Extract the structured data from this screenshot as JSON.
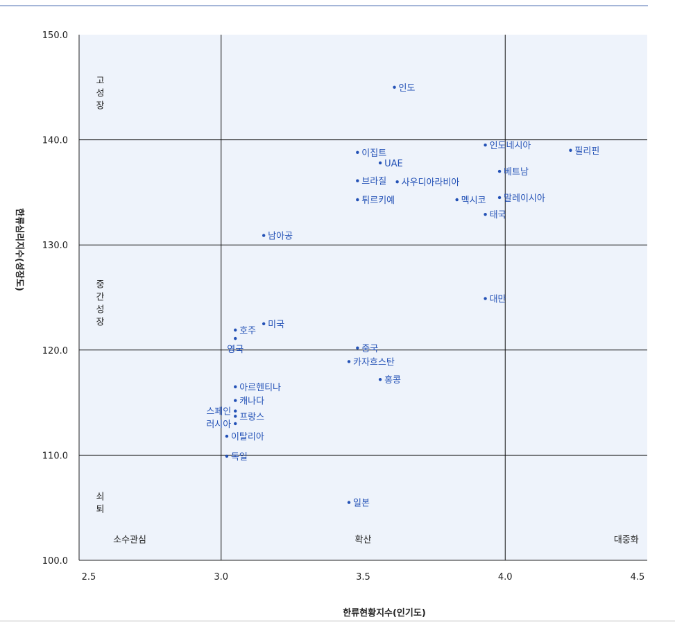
{
  "chart_data": {
    "type": "scatter",
    "xlabel": "한류현황지수(인기도)",
    "ylabel": "한류심리지수(성장도)",
    "xlim": [
      2.5,
      4.5
    ],
    "ylim": [
      100,
      150
    ],
    "xticks": [
      "2.5",
      "3.0",
      "3.5",
      "4.0",
      "4.5"
    ],
    "yticks": [
      "100.0",
      "110.0",
      "120.0",
      "130.0",
      "140.0",
      "150.0"
    ],
    "divider_x": [
      3.0,
      4.0
    ],
    "divider_y": [
      110,
      120,
      130,
      140
    ],
    "grid": false,
    "marker_color": "#2351b6",
    "background_color": "#eef3fb",
    "zones_y": [
      {
        "label": "고\n성\n장",
        "x": 2.55,
        "y": 144.5
      },
      {
        "label": "중\n간\n성\n장",
        "x": 2.55,
        "y": 124.5
      },
      {
        "label": "쇠\n퇴",
        "x": 2.55,
        "y": 105.5
      }
    ],
    "zones_x": [
      {
        "label": "소수관심",
        "x": 2.62,
        "y": 102
      },
      {
        "label": "확산",
        "x": 3.5,
        "y": 102
      },
      {
        "label": "대중화",
        "x": 4.47,
        "y": 102
      }
    ],
    "points": [
      {
        "label": "인도",
        "x": 3.61,
        "y": 145.0,
        "pos": "right"
      },
      {
        "label": "인도네시아",
        "x": 3.93,
        "y": 139.5,
        "pos": "right"
      },
      {
        "label": "필리핀",
        "x": 4.23,
        "y": 139.0,
        "pos": "right"
      },
      {
        "label": "이집트",
        "x": 3.48,
        "y": 138.8,
        "pos": "right"
      },
      {
        "label": "UAE",
        "x": 3.56,
        "y": 137.8,
        "pos": "right"
      },
      {
        "label": "베트남",
        "x": 3.98,
        "y": 137.0,
        "pos": "right"
      },
      {
        "label": "브라질",
        "x": 3.48,
        "y": 136.1,
        "pos": "right"
      },
      {
        "label": "사우디아라비아",
        "x": 3.62,
        "y": 136.0,
        "pos": "right"
      },
      {
        "label": "말레이시아",
        "x": 3.98,
        "y": 134.5,
        "pos": "right"
      },
      {
        "label": "튀르키예",
        "x": 3.48,
        "y": 134.3,
        "pos": "right"
      },
      {
        "label": "멕시코",
        "x": 3.83,
        "y": 134.3,
        "pos": "right"
      },
      {
        "label": "태국",
        "x": 3.93,
        "y": 132.9,
        "pos": "right"
      },
      {
        "label": "남아공",
        "x": 3.15,
        "y": 130.9,
        "pos": "right"
      },
      {
        "label": "대만",
        "x": 3.93,
        "y": 124.9,
        "pos": "right"
      },
      {
        "label": "미국",
        "x": 3.15,
        "y": 122.5,
        "pos": "right"
      },
      {
        "label": "호주",
        "x": 3.05,
        "y": 121.9,
        "pos": "right"
      },
      {
        "label": "영국",
        "x": 3.05,
        "y": 121.1,
        "pos": "below"
      },
      {
        "label": "중국",
        "x": 3.48,
        "y": 120.2,
        "pos": "right"
      },
      {
        "label": "카자흐스탄",
        "x": 3.45,
        "y": 118.9,
        "pos": "right"
      },
      {
        "label": "홍콩",
        "x": 3.56,
        "y": 117.2,
        "pos": "right"
      },
      {
        "label": "아르헨티나",
        "x": 3.05,
        "y": 116.5,
        "pos": "right"
      },
      {
        "label": "캐나다",
        "x": 3.05,
        "y": 115.2,
        "pos": "right"
      },
      {
        "label": "스페인",
        "x": 3.05,
        "y": 114.2,
        "pos": "left"
      },
      {
        "label": "프랑스",
        "x": 3.05,
        "y": 113.7,
        "pos": "right"
      },
      {
        "label": "러시아",
        "x": 3.05,
        "y": 113.0,
        "pos": "left"
      },
      {
        "label": "이탈리아",
        "x": 3.02,
        "y": 111.8,
        "pos": "right"
      },
      {
        "label": "독일",
        "x": 3.02,
        "y": 109.9,
        "pos": "right"
      },
      {
        "label": "일본",
        "x": 3.45,
        "y": 105.5,
        "pos": "right"
      }
    ]
  }
}
